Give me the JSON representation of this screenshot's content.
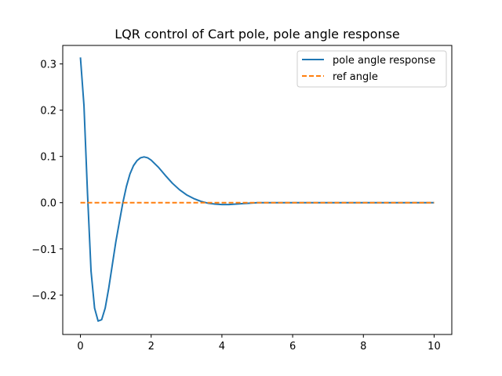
{
  "chart_data": {
    "type": "line",
    "title": "LQR control of Cart pole, pole angle response",
    "xlabel": "",
    "ylabel": "",
    "xlim": [
      -0.5,
      10.5
    ],
    "ylim": [
      -0.285,
      0.34
    ],
    "xticks": [
      0,
      2,
      4,
      6,
      8,
      10
    ],
    "xtick_labels": [
      "0",
      "2",
      "4",
      "6",
      "8",
      "10"
    ],
    "yticks": [
      -0.2,
      -0.1,
      0.0,
      0.1,
      0.2,
      0.3
    ],
    "ytick_labels": [
      "−0.2",
      "−0.1",
      "0.0",
      "0.1",
      "0.2",
      "0.3"
    ],
    "grid": false,
    "legend_position": "top-right",
    "series": [
      {
        "name": "pole angle response",
        "color": "#1f77b4",
        "style": "solid",
        "x": [
          0,
          0.1,
          0.2,
          0.3,
          0.4,
          0.5,
          0.6,
          0.7,
          0.8,
          0.9,
          1.0,
          1.1,
          1.2,
          1.3,
          1.4,
          1.5,
          1.6,
          1.7,
          1.8,
          1.9,
          2.0,
          2.2,
          2.4,
          2.6,
          2.8,
          3.0,
          3.2,
          3.4,
          3.6,
          3.8,
          4.0,
          4.2,
          4.4,
          4.6,
          4.8,
          5.0,
          5.5,
          6.0,
          7.0,
          8.0,
          9.0,
          10.0
        ],
        "y": [
          0.314,
          0.21,
          0.02,
          -0.148,
          -0.228,
          -0.256,
          -0.253,
          -0.228,
          -0.185,
          -0.135,
          -0.085,
          -0.042,
          0.0,
          0.035,
          0.062,
          0.08,
          0.091,
          0.097,
          0.099,
          0.097,
          0.092,
          0.077,
          0.059,
          0.042,
          0.028,
          0.017,
          0.009,
          0.003,
          -0.001,
          -0.003,
          -0.004,
          -0.004,
          -0.003,
          -0.002,
          -0.001,
          0.0,
          0.0,
          0.0,
          0.0,
          0.0,
          0.0,
          0.0
        ]
      },
      {
        "name": "ref angle",
        "color": "#ff7f0e",
        "style": "dashed",
        "x": [
          0,
          10
        ],
        "y": [
          0,
          0
        ]
      }
    ]
  }
}
